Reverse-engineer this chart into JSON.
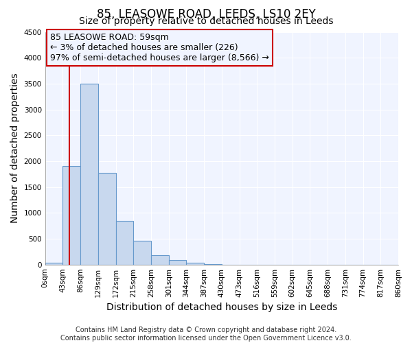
{
  "title": "85, LEASOWE ROAD, LEEDS, LS10 2EY",
  "subtitle": "Size of property relative to detached houses in Leeds",
  "xlabel": "Distribution of detached houses by size in Leeds",
  "ylabel": "Number of detached properties",
  "bin_edges": [
    0,
    43,
    86,
    129,
    172,
    215,
    258,
    301,
    344,
    387,
    430,
    473,
    516,
    559,
    602,
    645,
    688,
    731,
    774,
    817,
    860
  ],
  "bar_heights": [
    40,
    1900,
    3500,
    1780,
    850,
    460,
    175,
    85,
    40,
    15,
    0,
    0,
    0,
    0,
    0,
    0,
    0,
    0,
    0,
    0
  ],
  "bar_color": "#c8d8ee",
  "bar_edge_color": "#6699cc",
  "property_line_x": 59,
  "property_line_color": "#cc0000",
  "ylim": [
    0,
    4500
  ],
  "yticks": [
    0,
    500,
    1000,
    1500,
    2000,
    2500,
    3000,
    3500,
    4000,
    4500
  ],
  "xtick_labels": [
    "0sqm",
    "43sqm",
    "86sqm",
    "129sqm",
    "172sqm",
    "215sqm",
    "258sqm",
    "301sqm",
    "344sqm",
    "387sqm",
    "430sqm",
    "473sqm",
    "516sqm",
    "559sqm",
    "602sqm",
    "645sqm",
    "688sqm",
    "731sqm",
    "774sqm",
    "817sqm",
    "860sqm"
  ],
  "annotation_line1": "85 LEASOWE ROAD: 59sqm",
  "annotation_line2": "← 3% of detached houses are smaller (226)",
  "annotation_line3": "97% of semi-detached houses are larger (8,566) →",
  "footer_line1": "Contains HM Land Registry data © Crown copyright and database right 2024.",
  "footer_line2": "Contains public sector information licensed under the Open Government Licence v3.0.",
  "background_color": "#ffffff",
  "plot_bg_color": "#f0f4ff",
  "grid_color": "#ffffff",
  "title_fontsize": 12,
  "subtitle_fontsize": 10,
  "axis_label_fontsize": 10,
  "tick_fontsize": 7.5,
  "footer_fontsize": 7,
  "annotation_fontsize": 9
}
